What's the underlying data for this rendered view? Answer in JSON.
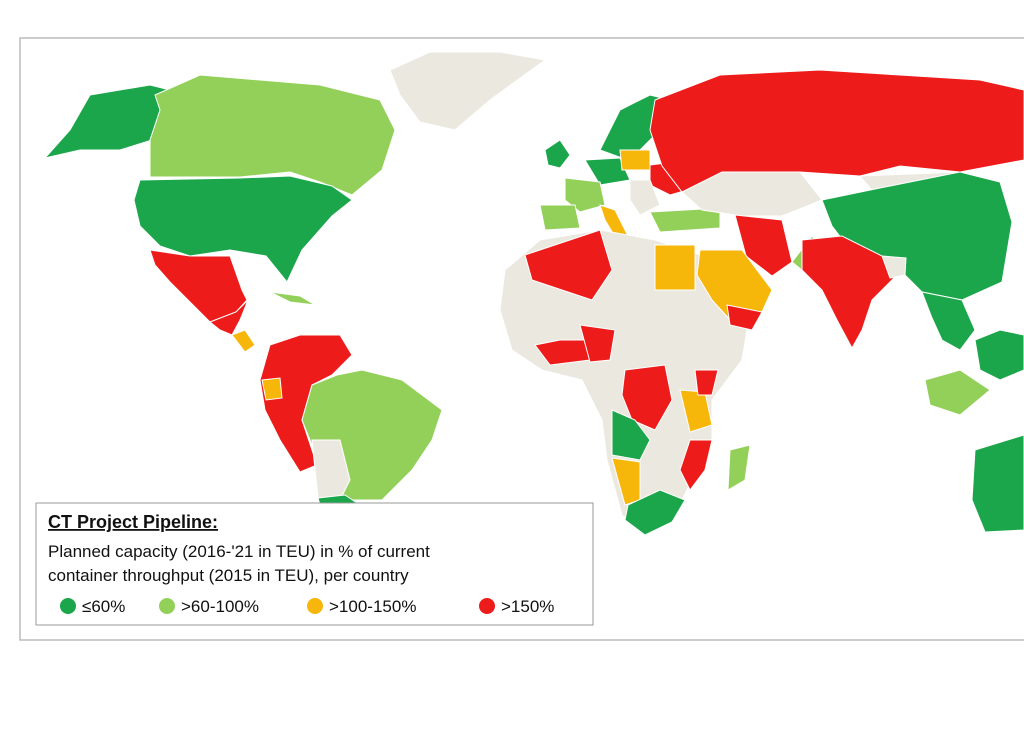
{
  "legend": {
    "title": "CT Project Pipeline:",
    "description": [
      "Planned capacity (2016-'21 in TEU) in % of current",
      "container throughput (2015 in TEU), per country"
    ],
    "items": [
      {
        "label": "≤60%",
        "color": "#1ca64b"
      },
      {
        "label": ">60-100%",
        "color": "#92d05a"
      },
      {
        "label": ">100-150%",
        "color": "#f6b60a"
      },
      {
        "label": ">150%",
        "color": "#ee1b1b"
      }
    ]
  }
}
